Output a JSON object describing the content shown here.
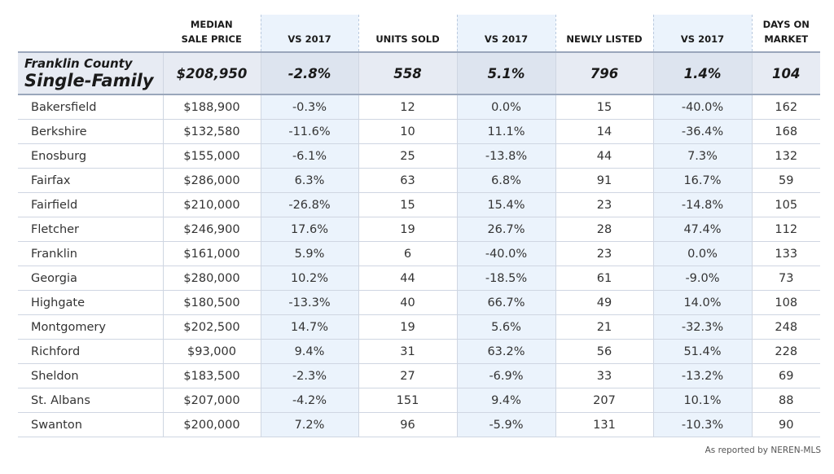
{
  "header": {
    "col0": "",
    "col1": [
      "MEDIAN",
      "SALE PRICE"
    ],
    "col2": "VS 2017",
    "col3": "UNITS SOLD",
    "col4": "VS 2017",
    "col5": "NEWLY LISTED",
    "col6": "VS 2017",
    "col7": [
      "DAYS ON",
      "MARKET"
    ]
  },
  "summary": {
    "county": "Franklin County",
    "segment": "Single-Family",
    "values": [
      "$208,950",
      "-2.8%",
      "558",
      "5.1%",
      "796",
      "1.4%",
      "104"
    ]
  },
  "rows": [
    [
      "Bakersfield",
      "$188,900",
      "-0.3%",
      "12",
      "0.0%",
      "15",
      "-40.0%",
      "162"
    ],
    [
      "Berkshire",
      "$132,580",
      "-11.6%",
      "10",
      "11.1%",
      "14",
      "-36.4%",
      "168"
    ],
    [
      "Enosburg",
      "$155,000",
      "-6.1%",
      "25",
      "-13.8%",
      "44",
      "7.3%",
      "132"
    ],
    [
      "Fairfax",
      "$286,000",
      "6.3%",
      "63",
      "6.8%",
      "91",
      "16.7%",
      "59"
    ],
    [
      "Fairfield",
      "$210,000",
      "-26.8%",
      "15",
      "15.4%",
      "23",
      "-14.8%",
      "105"
    ],
    [
      "Fletcher",
      "$246,900",
      "17.6%",
      "19",
      "26.7%",
      "28",
      "47.4%",
      "112"
    ],
    [
      "Franklin",
      "$161,000",
      "5.9%",
      "6",
      "-40.0%",
      "23",
      "0.0%",
      "133"
    ],
    [
      "Georgia",
      "$280,000",
      "10.2%",
      "44",
      "-18.5%",
      "61",
      "-9.0%",
      "73"
    ],
    [
      "Highgate",
      "$180,500",
      "-13.3%",
      "40",
      "66.7%",
      "49",
      "14.0%",
      "108"
    ],
    [
      "Montgomery",
      "$202,500",
      "14.7%",
      "19",
      "5.6%",
      "21",
      "-32.3%",
      "248"
    ],
    [
      "Richford",
      "$93,000",
      "9.4%",
      "31",
      "63.2%",
      "56",
      "51.4%",
      "228"
    ],
    [
      "Sheldon",
      "$183,500",
      "-2.3%",
      "27",
      "-6.9%",
      "33",
      "-13.2%",
      "69"
    ],
    [
      "St. Albans",
      "$207,000",
      "-4.2%",
      "151",
      "9.4%",
      "207",
      "10.1%",
      "88"
    ],
    [
      "Swanton",
      "$200,000",
      "7.2%",
      "96",
      "-5.9%",
      "131",
      "-10.3%",
      "90"
    ]
  ],
  "footer": {
    "source": "As reported by NEREN-MLS"
  },
  "colors": {
    "shade": "#ebf3fc",
    "summary_bg": "#e7ebf3",
    "grid": "#cfd6e2"
  }
}
